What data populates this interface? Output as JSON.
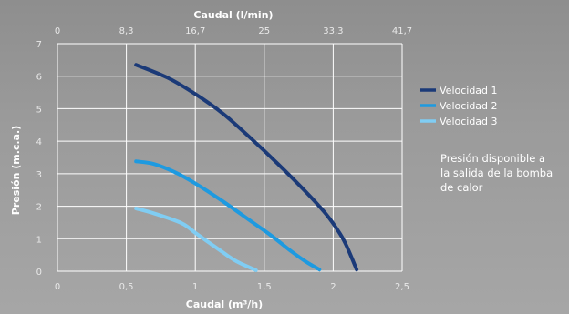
{
  "chart_data": {
    "type": "line",
    "xlabel": "Caudal (m³/h)",
    "ylabel": "Presión (m.c.a.)",
    "x2label": "Caudal (l/min)",
    "xlim": [
      0,
      2.5
    ],
    "ylim": [
      0,
      7
    ],
    "x_ticks": [
      "0",
      "0,5",
      "1",
      "1,5",
      "2",
      "2,5"
    ],
    "y_ticks": [
      "0",
      "1",
      "2",
      "3",
      "4",
      "5",
      "6",
      "7"
    ],
    "x2_ticks": [
      "0",
      "8,3",
      "16,7",
      "25",
      "33,3",
      "41,7"
    ],
    "grid": true,
    "legend_position": "right",
    "series": [
      {
        "name": "Velocidad 1",
        "color": "#1b3a78",
        "x": [
          0.57,
          0.8,
          1.0,
          1.2,
          1.4,
          1.6,
          1.8,
          1.95,
          2.05,
          2.1,
          2.17
        ],
        "y": [
          6.35,
          5.95,
          5.45,
          4.85,
          4.1,
          3.3,
          2.45,
          1.75,
          1.15,
          0.75,
          0.05
        ]
      },
      {
        "name": "Velocidad 2",
        "color": "#1e9ae0",
        "x": [
          0.57,
          0.7,
          0.85,
          1.0,
          1.2,
          1.4,
          1.55,
          1.7,
          1.8,
          1.9
        ],
        "y": [
          3.38,
          3.3,
          3.05,
          2.7,
          2.15,
          1.55,
          1.1,
          0.6,
          0.3,
          0.05
        ]
      },
      {
        "name": "Velocidad 3",
        "color": "#80cdf3",
        "x": [
          0.57,
          0.7,
          0.9,
          1.0,
          1.1,
          1.2,
          1.3,
          1.44
        ],
        "y": [
          1.93,
          1.78,
          1.48,
          1.18,
          0.88,
          0.58,
          0.3,
          0.03
        ]
      }
    ]
  },
  "annotation": {
    "lines": [
      "Presión disponible a",
      "la salida de la bomba",
      "de calor"
    ]
  }
}
